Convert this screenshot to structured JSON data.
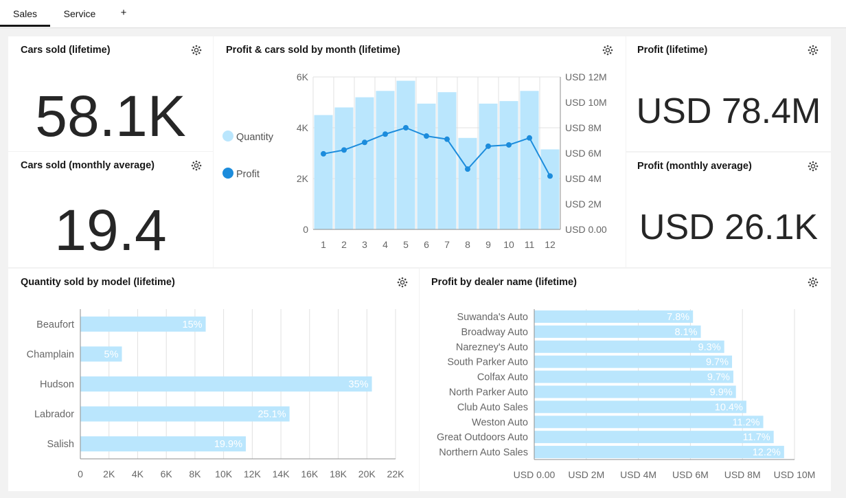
{
  "tabs": [
    {
      "label": "Sales",
      "active": true
    },
    {
      "label": "Service",
      "active": false
    }
  ],
  "add_tab_label": "+",
  "colors": {
    "bar": "#bae6fd",
    "line": "#1c8cdc",
    "text": "#262626",
    "axis": "#666666",
    "grid": "#e0e0e0"
  },
  "cards": {
    "cars_sold_lifetime": {
      "title": "Cars sold (lifetime)",
      "value": "58.1K"
    },
    "cars_sold_monthly": {
      "title": "Cars sold (monthly average)",
      "value": "19.4"
    },
    "profit_lifetime": {
      "title": "Profit (lifetime)",
      "value": "USD 78.4M"
    },
    "profit_monthly": {
      "title": "Profit (monthly average)",
      "value": "USD 26.1K"
    },
    "combo_chart": {
      "title": "Profit & cars sold by month (lifetime)"
    },
    "model_chart": {
      "title": "Quantity sold by model (lifetime)"
    },
    "dealer_chart": {
      "title": "Profit by dealer name (lifetime)"
    }
  },
  "chart_data": [
    {
      "type": "bar",
      "title": "Profit & cars sold by month (lifetime)",
      "categories": [
        "1",
        "2",
        "3",
        "4",
        "5",
        "6",
        "7",
        "8",
        "9",
        "10",
        "11",
        "12"
      ],
      "series": [
        {
          "name": "Quantity",
          "type": "bar",
          "axis": "left",
          "values": [
            4500,
            4800,
            5200,
            5450,
            5850,
            4950,
            5400,
            3600,
            4950,
            5050,
            5450,
            3150
          ]
        },
        {
          "name": "Profit",
          "type": "line",
          "axis": "right",
          "values": [
            5950000,
            6250000,
            6850000,
            7500000,
            8000000,
            7350000,
            7100000,
            4750000,
            6550000,
            6650000,
            7200000,
            4200000
          ]
        }
      ],
      "y_left": {
        "ylim": [
          0,
          6000
        ],
        "ticks": [
          0,
          2000,
          4000,
          6000
        ],
        "tick_labels": [
          "0",
          "2K",
          "4K",
          "6K"
        ]
      },
      "y_right": {
        "ylim": [
          0,
          12000000
        ],
        "ticks": [
          0,
          2000000,
          4000000,
          6000000,
          8000000,
          10000000,
          12000000
        ],
        "tick_labels": [
          "USD 0.00",
          "USD 2M",
          "USD 4M",
          "USD 6M",
          "USD 8M",
          "USD 10M",
          "USD 12M"
        ]
      },
      "legend": {
        "position": "left",
        "entries": [
          "Quantity",
          "Profit"
        ]
      },
      "grid": true
    },
    {
      "type": "bar",
      "orientation": "horizontal",
      "title": "Quantity sold by model (lifetime)",
      "categories": [
        "Beaufort",
        "Champlain",
        "Hudson",
        "Labrador",
        "Salish"
      ],
      "values": [
        8750,
        2900,
        20350,
        14600,
        11550
      ],
      "data_labels": [
        "15%",
        "5%",
        "35%",
        "25.1%",
        "19.9%"
      ],
      "xlim": [
        0,
        22000
      ],
      "x_ticks": [
        0,
        2000,
        4000,
        6000,
        8000,
        10000,
        12000,
        14000,
        16000,
        18000,
        20000,
        22000
      ],
      "x_tick_labels": [
        "0",
        "2K",
        "4K",
        "6K",
        "8K",
        "10K",
        "12K",
        "14K",
        "16K",
        "18K",
        "20K",
        "22K"
      ],
      "grid": true
    },
    {
      "type": "bar",
      "orientation": "horizontal",
      "title": "Profit by dealer name (lifetime)",
      "categories": [
        "Suwanda's Auto",
        "Broadway Auto",
        "Narezney's Auto",
        "South Parker Auto",
        "Colfax Auto",
        "North Parker Auto",
        "Club Auto Sales",
        "Weston Auto",
        "Great Outdoors Auto",
        "Northern Auto Sales"
      ],
      "values": [
        6100000,
        6400000,
        7300000,
        7600000,
        7650000,
        7750000,
        8150000,
        8800000,
        9200000,
        9600000
      ],
      "data_labels": [
        "7.8%",
        "8.1%",
        "9.3%",
        "9.7%",
        "9.7%",
        "9.9%",
        "10.4%",
        "11.2%",
        "11.7%",
        "12.2%"
      ],
      "xlim": [
        0,
        10000000
      ],
      "x_ticks": [
        0,
        2000000,
        4000000,
        6000000,
        8000000,
        10000000
      ],
      "x_tick_labels": [
        "USD 0.00",
        "USD 2M",
        "USD 4M",
        "USD 6M",
        "USD 8M",
        "USD 10M"
      ],
      "grid": true
    }
  ]
}
